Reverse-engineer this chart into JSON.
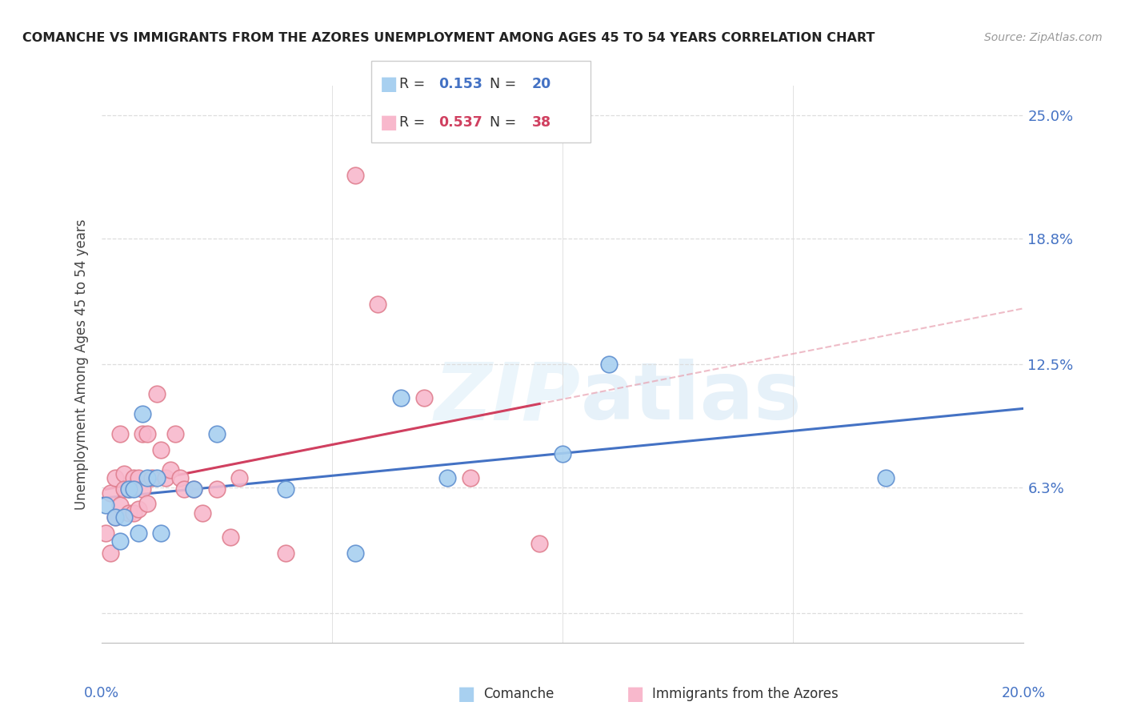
{
  "title": "COMANCHE VS IMMIGRANTS FROM THE AZORES UNEMPLOYMENT AMONG AGES 45 TO 54 YEARS CORRELATION CHART",
  "source": "Source: ZipAtlas.com",
  "ylabel": "Unemployment Among Ages 45 to 54 years",
  "xlabel_comanche": "Comanche",
  "xlabel_azores": "Immigrants from the Azores",
  "xlim": [
    0.0,
    0.2
  ],
  "ylim": [
    -0.015,
    0.265
  ],
  "yticks": [
    0.0,
    0.063,
    0.125,
    0.188,
    0.25
  ],
  "ytick_labels": [
    "",
    "6.3%",
    "12.5%",
    "18.8%",
    "25.0%"
  ],
  "comanche_R": 0.153,
  "comanche_N": 20,
  "azores_R": 0.537,
  "azores_N": 38,
  "comanche_color": "#A8D0F0",
  "azores_color": "#F8B8CC",
  "comanche_edge_color": "#6090D0",
  "azores_edge_color": "#E08090",
  "comanche_line_color": "#4472C4",
  "azores_line_color": "#D04060",
  "right_axis_color": "#4472C4",
  "comanche_points_x": [
    0.001,
    0.003,
    0.004,
    0.005,
    0.006,
    0.007,
    0.008,
    0.009,
    0.01,
    0.012,
    0.013,
    0.02,
    0.025,
    0.04,
    0.055,
    0.065,
    0.075,
    0.1,
    0.11,
    0.17
  ],
  "comanche_points_y": [
    0.054,
    0.048,
    0.036,
    0.048,
    0.062,
    0.062,
    0.04,
    0.1,
    0.068,
    0.068,
    0.04,
    0.062,
    0.09,
    0.062,
    0.03,
    0.108,
    0.068,
    0.08,
    0.125,
    0.068
  ],
  "azores_points_x": [
    0.001,
    0.002,
    0.002,
    0.003,
    0.003,
    0.004,
    0.004,
    0.005,
    0.005,
    0.006,
    0.006,
    0.007,
    0.007,
    0.008,
    0.008,
    0.009,
    0.009,
    0.01,
    0.01,
    0.011,
    0.012,
    0.013,
    0.014,
    0.015,
    0.016,
    0.017,
    0.018,
    0.02,
    0.022,
    0.025,
    0.028,
    0.03,
    0.04,
    0.055,
    0.06,
    0.07,
    0.08,
    0.095
  ],
  "azores_points_y": [
    0.04,
    0.06,
    0.03,
    0.068,
    0.048,
    0.054,
    0.09,
    0.07,
    0.062,
    0.062,
    0.05,
    0.068,
    0.05,
    0.068,
    0.052,
    0.09,
    0.062,
    0.055,
    0.09,
    0.068,
    0.11,
    0.082,
    0.068,
    0.072,
    0.09,
    0.068,
    0.062,
    0.062,
    0.05,
    0.062,
    0.038,
    0.068,
    0.03,
    0.22,
    0.155,
    0.108,
    0.068,
    0.035
  ],
  "watermark_zip": "ZIP",
  "watermark_atlas": "atlas",
  "background_color": "#FFFFFF",
  "grid_color": "#DDDDDD"
}
